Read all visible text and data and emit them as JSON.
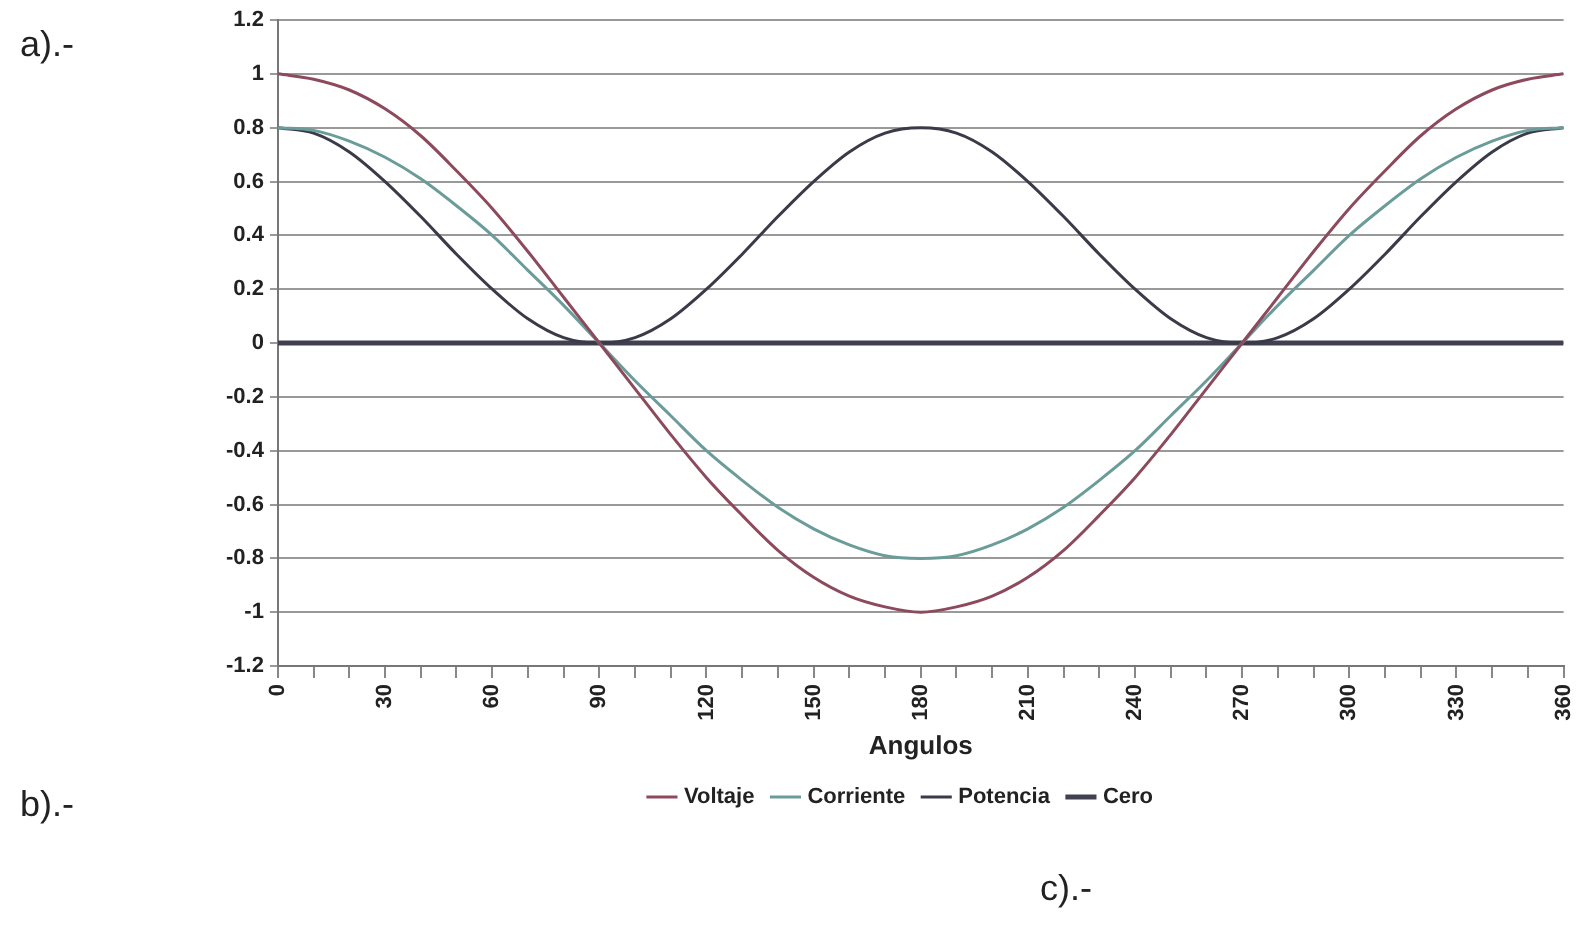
{
  "chart_data": {
    "type": "line",
    "xlabel": "Angulos",
    "annotations": [
      "a).-",
      "b).-",
      "c).-"
    ],
    "x": [
      0,
      10,
      20,
      30,
      40,
      50,
      60,
      70,
      80,
      90,
      100,
      110,
      120,
      130,
      140,
      150,
      160,
      170,
      180,
      190,
      200,
      210,
      220,
      230,
      240,
      250,
      260,
      270,
      280,
      290,
      300,
      310,
      320,
      330,
      340,
      350,
      360
    ],
    "series": [
      {
        "name": "Voltaje",
        "color": "#8c4a5c",
        "values": [
          1,
          0.98,
          0.94,
          0.87,
          0.77,
          0.64,
          0.5,
          0.34,
          0.17,
          0,
          -0.17,
          -0.34,
          -0.5,
          -0.64,
          -0.77,
          -0.87,
          -0.94,
          -0.98,
          -1,
          -0.98,
          -0.94,
          -0.87,
          -0.77,
          -0.64,
          -0.5,
          -0.34,
          -0.17,
          0,
          0.17,
          0.34,
          0.5,
          0.64,
          0.77,
          0.87,
          0.94,
          0.98,
          1
        ]
      },
      {
        "name": "Corriente",
        "color": "#6a9c9a",
        "values": [
          0.8,
          0.79,
          0.75,
          0.69,
          0.61,
          0.51,
          0.4,
          0.27,
          0.14,
          0,
          -0.14,
          -0.27,
          -0.4,
          -0.51,
          -0.61,
          -0.69,
          -0.75,
          -0.79,
          -0.8,
          -0.79,
          -0.75,
          -0.69,
          -0.61,
          -0.51,
          -0.4,
          -0.27,
          -0.14,
          0,
          0.14,
          0.27,
          0.4,
          0.51,
          0.61,
          0.69,
          0.75,
          0.79,
          0.8
        ]
      },
      {
        "name": "Potencia",
        "color": "#3a3a48",
        "values": [
          0.8,
          0.78,
          0.71,
          0.6,
          0.47,
          0.33,
          0.2,
          0.09,
          0.02,
          0,
          0.02,
          0.09,
          0.2,
          0.33,
          0.47,
          0.6,
          0.71,
          0.78,
          0.8,
          0.78,
          0.71,
          0.6,
          0.47,
          0.33,
          0.2,
          0.09,
          0.02,
          0,
          0.02,
          0.09,
          0.2,
          0.33,
          0.47,
          0.6,
          0.71,
          0.78,
          0.8
        ]
      },
      {
        "name": "Cero",
        "color": "#404050",
        "values": [
          0,
          0,
          0,
          0,
          0,
          0,
          0,
          0,
          0,
          0,
          0,
          0,
          0,
          0,
          0,
          0,
          0,
          0,
          0,
          0,
          0,
          0,
          0,
          0,
          0,
          0,
          0,
          0,
          0,
          0,
          0,
          0,
          0,
          0,
          0,
          0,
          0
        ]
      }
    ],
    "xlim": [
      0,
      360
    ],
    "xticks": [
      0,
      {
        "value": 10,
        "label": null
      },
      {
        "value": 20,
        "label": null
      },
      30,
      {
        "value": 40,
        "label": null
      },
      {
        "value": 50,
        "label": null
      },
      60,
      {
        "value": 70,
        "label": null
      },
      {
        "value": 80,
        "label": null
      },
      90,
      {
        "value": 100,
        "label": null
      },
      {
        "value": 110,
        "label": null
      },
      120,
      {
        "value": 130,
        "label": null
      },
      {
        "value": 140,
        "label": null
      },
      150,
      {
        "value": 160,
        "label": null
      },
      {
        "value": 170,
        "label": null
      },
      180,
      {
        "value": 190,
        "label": null
      },
      {
        "value": 200,
        "label": null
      },
      210,
      {
        "value": 220,
        "label": null
      },
      {
        "value": 230,
        "label": null
      },
      240,
      {
        "value": 250,
        "label": null
      },
      {
        "value": 260,
        "label": null
      },
      270,
      {
        "value": 280,
        "label": null
      },
      {
        "value": 290,
        "label": null
      },
      300,
      {
        "value": 310,
        "label": null
      },
      {
        "value": 320,
        "label": null
      },
      330,
      {
        "value": 340,
        "label": null
      },
      {
        "value": 350,
        "label": null
      },
      360
    ],
    "ylim": [
      -1.2,
      1.2
    ],
    "yticks": [
      -1.2,
      -1,
      -0.8,
      -0.6,
      -0.4,
      -0.2,
      0,
      0.2,
      0.4,
      0.6,
      0.8,
      1,
      1.2
    ],
    "grid": "y",
    "legend": "bottom",
    "marker": "none",
    "line_style": "solid"
  }
}
